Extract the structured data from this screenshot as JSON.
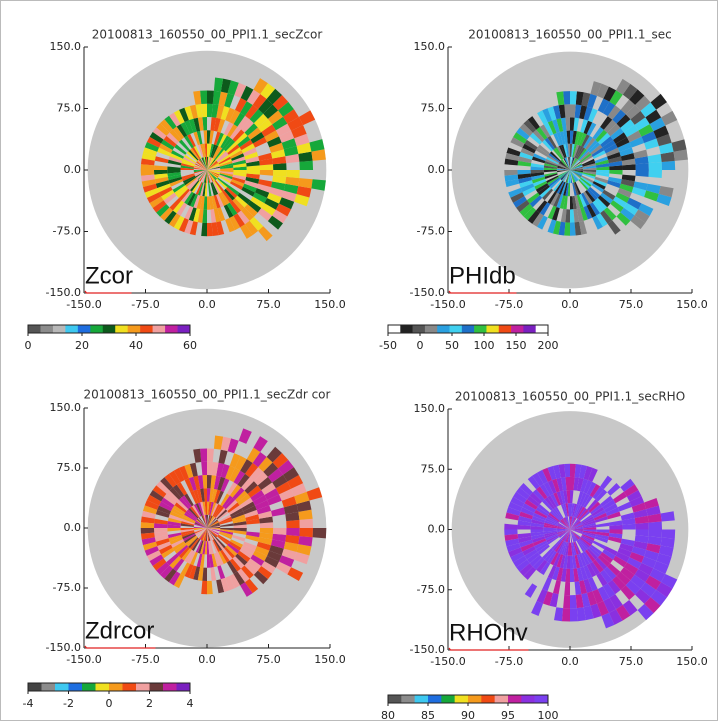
{
  "chart_data": [
    {
      "type": "ppi",
      "title": "20100813_160550_00_PPI1.1_secZcor",
      "label": "Zcor",
      "xlim": [
        -150,
        150
      ],
      "ylim": [
        -150,
        150
      ],
      "xticks": [
        {
          "value": -150,
          "label": "-150.0"
        },
        {
          "value": -75,
          "label": "-75.0"
        },
        {
          "value": 0,
          "label": "0.0"
        },
        {
          "value": 75,
          "label": "75.0"
        },
        {
          "value": 150,
          "label": "150.0"
        }
      ],
      "yticks": [
        {
          "value": -150,
          "label": "-150.0"
        },
        {
          "value": -75,
          "label": "-75.0"
        },
        {
          "value": 0,
          "label": "0.0"
        },
        {
          "value": 75,
          "label": "75.0"
        },
        {
          "value": 150,
          "label": "150.0"
        }
      ],
      "colorbar_lim": [
        0,
        60
      ],
      "colorbar_ticks": [
        0,
        20,
        40,
        60
      ],
      "colorbar_colors": [
        "#555555",
        "#8c8c8c",
        "#b8b8b8",
        "#3ec8f0",
        "#1e6ee0",
        "#16a83a",
        "#0d5a1c",
        "#f0e020",
        "#f59a1c",
        "#f04a14",
        "#f0a0a0",
        "#c020a0",
        "#7a20c0"
      ]
    },
    {
      "type": "ppi",
      "title": "20100813_160550_00_PPI1.1_sec",
      "label": "PHIdb",
      "xlim": [
        -150,
        150
      ],
      "ylim": [
        -150,
        150
      ],
      "xticks": [
        {
          "value": -150,
          "label": "-150.0"
        },
        {
          "value": -75,
          "label": "-75.0"
        },
        {
          "value": 0,
          "label": "0.0"
        },
        {
          "value": 75,
          "label": "75.0"
        },
        {
          "value": 150,
          "label": "150.0"
        }
      ],
      "yticks": [
        {
          "value": -150,
          "label": "-150.0"
        },
        {
          "value": -75,
          "label": "-75.0"
        },
        {
          "value": 0,
          "label": "0.0"
        },
        {
          "value": 75,
          "label": "75.0"
        },
        {
          "value": 150,
          "label": "150.0"
        }
      ],
      "colorbar_lim": [
        -50,
        200
      ],
      "colorbar_ticks": [
        -50,
        0,
        50,
        100,
        150,
        200
      ],
      "colorbar_colors": [
        "#ffffff",
        "#222222",
        "#555555",
        "#888888",
        "#2aa0e0",
        "#40d0f0",
        "#1e70c8",
        "#30c040",
        "#f0e020",
        "#f04a14",
        "#c020a0",
        "#7a20c0",
        "#ffffff"
      ]
    },
    {
      "type": "ppi",
      "title": "20100813_160550_00_PPI1.1_secZdr cor",
      "label": "Zdrcor",
      "xlim": [
        -150,
        150
      ],
      "ylim": [
        -150,
        150
      ],
      "xticks": [
        {
          "value": -150,
          "label": "-150.0"
        },
        {
          "value": -75,
          "label": "-75.0"
        },
        {
          "value": 0,
          "label": "0.0"
        },
        {
          "value": 75,
          "label": "75.0"
        },
        {
          "value": 150,
          "label": "150.0"
        }
      ],
      "yticks": [
        {
          "value": -150,
          "label": "-150.0"
        },
        {
          "value": -75,
          "label": "-75.0"
        },
        {
          "value": 0,
          "label": "0.0"
        },
        {
          "value": 75,
          "label": "75.0"
        },
        {
          "value": 150,
          "label": "150.0"
        }
      ],
      "colorbar_lim": [
        -4,
        4
      ],
      "colorbar_ticks": [
        -4,
        -2,
        0,
        2,
        4
      ],
      "colorbar_colors": [
        "#444444",
        "#8c8c8c",
        "#3ec8f0",
        "#1e6ee0",
        "#16a83a",
        "#f0e020",
        "#f59a1c",
        "#f04a14",
        "#f0a0a0",
        "#6a3a3a",
        "#c020a0",
        "#7a20c0"
      ]
    },
    {
      "type": "ppi",
      "title": "20100813_160550_00_PPI1.1_secRHO",
      "label": "RHOhv",
      "xlim": [
        -150,
        150
      ],
      "ylim": [
        -150,
        150
      ],
      "xticks": [
        {
          "value": -150,
          "label": "-150.0"
        },
        {
          "value": -75,
          "label": "-75.0"
        },
        {
          "value": 0,
          "label": "0.0"
        },
        {
          "value": 75,
          "label": "75.0"
        },
        {
          "value": 150,
          "label": "150.0"
        }
      ],
      "yticks": [
        {
          "value": -150,
          "label": "-150.0"
        },
        {
          "value": -75,
          "label": "-75.0"
        },
        {
          "value": 0,
          "label": "0.0"
        },
        {
          "value": 75,
          "label": "75.0"
        },
        {
          "value": 150,
          "label": "150.0"
        }
      ],
      "colorbar_lim": [
        80,
        100
      ],
      "colorbar_ticks": [
        80,
        85,
        90,
        95,
        100
      ],
      "colorbar_colors": [
        "#555555",
        "#8c8c8c",
        "#3ec8f0",
        "#1e6ee0",
        "#16a83a",
        "#f0e020",
        "#f59a1c",
        "#f04a14",
        "#f0a0a0",
        "#c020a0",
        "#8a30e0",
        "#7a40f0"
      ]
    }
  ]
}
